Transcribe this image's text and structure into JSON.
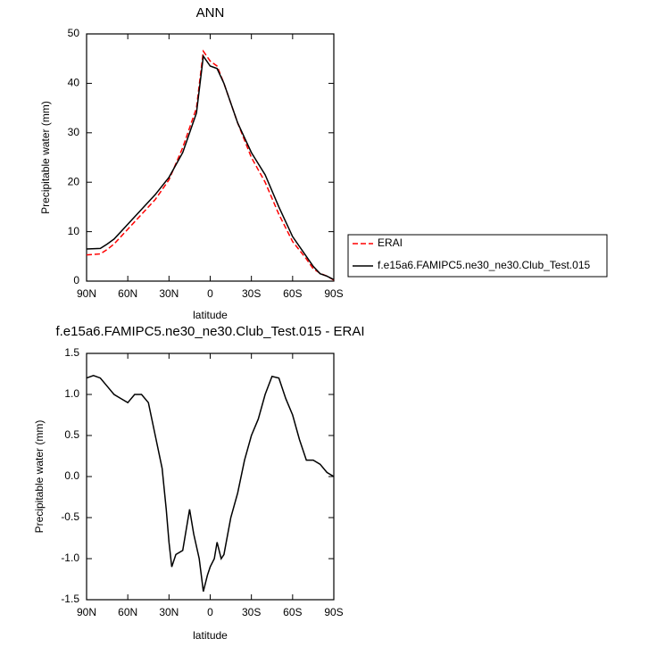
{
  "chart_data": [
    {
      "type": "line",
      "title": "ANN",
      "xlabel": "latitude",
      "ylabel": "Precipitable water (mm)",
      "x": [
        90,
        80,
        75,
        70,
        60,
        50,
        40,
        30,
        20,
        10,
        5,
        0,
        -5,
        -10,
        -20,
        -30,
        -40,
        -50,
        -60,
        -70,
        -75,
        -80,
        -85,
        -90
      ],
      "xlim": [
        90,
        -90
      ],
      "xticks": [
        {
          "value": 90,
          "label": "90N"
        },
        {
          "value": 60,
          "label": "60N"
        },
        {
          "value": 30,
          "label": "30N"
        },
        0,
        {
          "value": -30,
          "label": "30S"
        },
        {
          "value": -60,
          "label": "60S"
        },
        {
          "value": -90,
          "label": "90S"
        }
      ],
      "ylim": [
        0,
        50
      ],
      "yticks": [
        0,
        10,
        20,
        30,
        40,
        50
      ],
      "legend": "right",
      "series": [
        {
          "name": "ERAI",
          "color": "#ff0000",
          "dash": true,
          "values": [
            5.3,
            5.5,
            6.4,
            7.5,
            10.5,
            13.5,
            16.5,
            20.5,
            27,
            35,
            46.5,
            44.5,
            43.5,
            40,
            32,
            25,
            20,
            13.5,
            8,
            4.5,
            2.5,
            1.6,
            1.0,
            0.2
          ]
        },
        {
          "name": "f.e15a6.FAMIPC5.ne30_ne30.Club_Test.015",
          "color": "#000000",
          "dash": false,
          "values": [
            6.5,
            6.6,
            7.5,
            8.5,
            11.5,
            14.5,
            17.5,
            21,
            26,
            34,
            45.5,
            43.5,
            43,
            40,
            32,
            26,
            21.5,
            15,
            9,
            5,
            3,
            1.5,
            1.0,
            0.3
          ]
        }
      ]
    },
    {
      "type": "line",
      "title": "f.e15a6.FAMIPC5.ne30_ne30.Club_Test.015 - ERAI",
      "xlabel": "latitude",
      "ylabel": "Precipitable water (mm)",
      "x": [
        90,
        85,
        80,
        75,
        70,
        65,
        60,
        55,
        50,
        45,
        40,
        35,
        32,
        30,
        28,
        25,
        20,
        15,
        12,
        8,
        5,
        2,
        0,
        -3,
        -5,
        -8,
        -10,
        -15,
        -20,
        -25,
        -30,
        -35,
        -40,
        -45,
        -50,
        -55,
        -60,
        -65,
        -70,
        -75,
        -80,
        -85,
        -90
      ],
      "xlim": [
        90,
        -90
      ],
      "xticks": [
        {
          "value": 90,
          "label": "90N"
        },
        {
          "value": 60,
          "label": "60N"
        },
        {
          "value": 30,
          "label": "30N"
        },
        0,
        {
          "value": -30,
          "label": "30S"
        },
        {
          "value": -60,
          "label": "60S"
        },
        {
          "value": -90,
          "label": "90S"
        }
      ],
      "ylim": [
        -1.5,
        1.5
      ],
      "yticks": [
        -1.5,
        {
          "value": -1,
          "label": "-1.0"
        },
        -0.5,
        {
          "value": 0,
          "label": "0.0"
        },
        0.5,
        {
          "value": 1,
          "label": "1.0"
        },
        1.5
      ],
      "series": [
        {
          "color": "#000000",
          "dash": false,
          "values": [
            1.2,
            1.23,
            1.2,
            1.1,
            1.0,
            0.95,
            0.9,
            1.0,
            1.0,
            0.9,
            0.5,
            0.1,
            -0.4,
            -0.8,
            -1.1,
            -0.95,
            -0.9,
            -0.4,
            -0.7,
            -1.0,
            -1.4,
            -1.2,
            -1.1,
            -1.0,
            -0.8,
            -1.0,
            -0.95,
            -0.5,
            -0.2,
            0.2,
            0.5,
            0.7,
            1.0,
            1.22,
            1.2,
            0.95,
            0.75,
            0.45,
            0.2,
            0.2,
            0.15,
            0.05,
            0.0
          ]
        }
      ]
    }
  ]
}
